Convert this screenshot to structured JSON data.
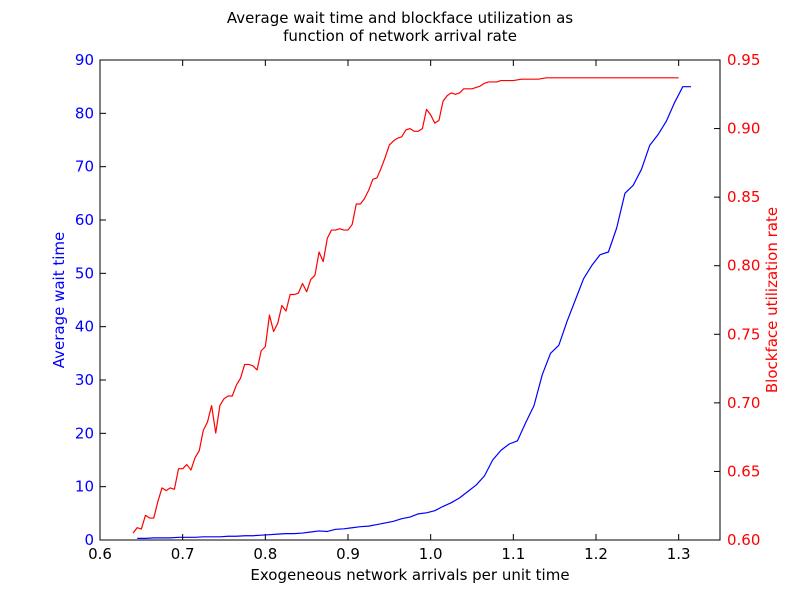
{
  "chart_data": {
    "type": "line",
    "title_line1": "Average wait time and blockface utilization as",
    "title_line2": "function of network arrival rate",
    "xlabel": "Exogeneous network arrivals per unit time",
    "ylabel_left": "Average wait time",
    "ylabel_right": "Blockface utilization rate",
    "xlim": [
      0.6,
      1.35
    ],
    "ylim_left": [
      0,
      90
    ],
    "ylim_right": [
      0.6,
      0.95
    ],
    "x_ticks": [
      "0.6",
      "0.7",
      "0.8",
      "0.9",
      "1.0",
      "1.1",
      "1.2",
      "1.3"
    ],
    "y_left_ticks": [
      "0",
      "10",
      "20",
      "30",
      "40",
      "50",
      "60",
      "70",
      "80",
      "90"
    ],
    "y_right_ticks": [
      "0.60",
      "0.65",
      "0.70",
      "0.75",
      "0.80",
      "0.85",
      "0.90",
      "0.95"
    ],
    "colors": {
      "left_series": "#0000ff",
      "right_series": "#ff0000",
      "axes": "#000000"
    },
    "series": [
      {
        "axis": "left",
        "color": "#0000ff",
        "x": [
          0.645,
          0.655,
          0.665,
          0.675,
          0.685,
          0.695,
          0.705,
          0.715,
          0.725,
          0.735,
          0.745,
          0.755,
          0.765,
          0.775,
          0.785,
          0.795,
          0.805,
          0.815,
          0.825,
          0.835,
          0.845,
          0.855,
          0.865,
          0.875,
          0.885,
          0.895,
          0.905,
          0.915,
          0.925,
          0.935,
          0.945,
          0.955,
          0.965,
          0.975,
          0.985,
          0.995,
          1.005,
          1.015,
          1.025,
          1.035,
          1.045,
          1.055,
          1.065,
          1.075,
          1.085,
          1.095,
          1.105,
          1.115,
          1.125,
          1.135,
          1.145,
          1.155,
          1.165,
          1.175,
          1.185,
          1.195,
          1.205,
          1.215,
          1.225,
          1.235,
          1.245,
          1.255,
          1.265,
          1.275,
          1.285,
          1.295,
          1.305,
          1.315
        ],
        "y": [
          0.3,
          0.3,
          0.4,
          0.4,
          0.4,
          0.5,
          0.5,
          0.5,
          0.6,
          0.6,
          0.6,
          0.7,
          0.7,
          0.8,
          0.8,
          0.9,
          1.0,
          1.1,
          1.2,
          1.2,
          1.3,
          1.5,
          1.7,
          1.6,
          2.0,
          2.1,
          2.3,
          2.5,
          2.6,
          2.9,
          3.2,
          3.5,
          4.0,
          4.3,
          4.9,
          5.1,
          5.5,
          6.3,
          7.0,
          7.9,
          9.1,
          10.3,
          12.0,
          15.0,
          16.8,
          18.0,
          18.6,
          22.0,
          25.2,
          31.0,
          35.0,
          36.5,
          41.0,
          45.0,
          49.0,
          51.5,
          53.5,
          54.0,
          58.5,
          65.0,
          66.5,
          69.5,
          74.0,
          76.0,
          78.5,
          82.0,
          85.0,
          85.0
        ]
      },
      {
        "axis": "right",
        "color": "#ff0000",
        "x": [
          0.64,
          0.645,
          0.65,
          0.655,
          0.66,
          0.665,
          0.67,
          0.675,
          0.68,
          0.685,
          0.69,
          0.695,
          0.7,
          0.705,
          0.71,
          0.715,
          0.72,
          0.725,
          0.73,
          0.735,
          0.74,
          0.745,
          0.75,
          0.755,
          0.76,
          0.765,
          0.77,
          0.775,
          0.78,
          0.785,
          0.79,
          0.795,
          0.8,
          0.805,
          0.81,
          0.815,
          0.82,
          0.825,
          0.83,
          0.835,
          0.84,
          0.845,
          0.85,
          0.855,
          0.86,
          0.865,
          0.87,
          0.875,
          0.88,
          0.885,
          0.89,
          0.895,
          0.9,
          0.905,
          0.91,
          0.915,
          0.92,
          0.925,
          0.93,
          0.935,
          0.94,
          0.945,
          0.95,
          0.955,
          0.96,
          0.965,
          0.97,
          0.975,
          0.98,
          0.985,
          0.99,
          0.995,
          1.0,
          1.005,
          1.01,
          1.015,
          1.02,
          1.025,
          1.03,
          1.035,
          1.04,
          1.045,
          1.05,
          1.055,
          1.06,
          1.065,
          1.07,
          1.075,
          1.08,
          1.085,
          1.09,
          1.095,
          1.1,
          1.11,
          1.12,
          1.13,
          1.14,
          1.15,
          1.16,
          1.17,
          1.18,
          1.19,
          1.2,
          1.21,
          1.22,
          1.23,
          1.24,
          1.25,
          1.26,
          1.27,
          1.28,
          1.29,
          1.3
        ],
        "y": [
          0.605,
          0.609,
          0.608,
          0.618,
          0.616,
          0.616,
          0.628,
          0.638,
          0.636,
          0.638,
          0.637,
          0.652,
          0.652,
          0.655,
          0.651,
          0.66,
          0.665,
          0.68,
          0.686,
          0.698,
          0.678,
          0.698,
          0.703,
          0.705,
          0.705,
          0.713,
          0.718,
          0.728,
          0.728,
          0.727,
          0.724,
          0.738,
          0.741,
          0.764,
          0.752,
          0.758,
          0.771,
          0.767,
          0.779,
          0.779,
          0.78,
          0.787,
          0.781,
          0.79,
          0.793,
          0.81,
          0.803,
          0.82,
          0.826,
          0.826,
          0.827,
          0.826,
          0.826,
          0.83,
          0.845,
          0.845,
          0.849,
          0.855,
          0.863,
          0.864,
          0.871,
          0.879,
          0.888,
          0.891,
          0.893,
          0.894,
          0.899,
          0.9,
          0.898,
          0.898,
          0.9,
          0.914,
          0.91,
          0.904,
          0.906,
          0.92,
          0.924,
          0.926,
          0.925,
          0.926,
          0.929,
          0.929,
          0.929,
          0.93,
          0.931,
          0.933,
          0.934,
          0.934,
          0.934,
          0.935,
          0.935,
          0.935,
          0.935,
          0.936,
          0.936,
          0.936,
          0.937,
          0.937,
          0.937,
          0.937,
          0.937,
          0.937,
          0.937,
          0.937,
          0.937,
          0.937,
          0.937,
          0.937,
          0.937,
          0.937,
          0.937,
          0.937,
          0.937
        ]
      }
    ]
  }
}
